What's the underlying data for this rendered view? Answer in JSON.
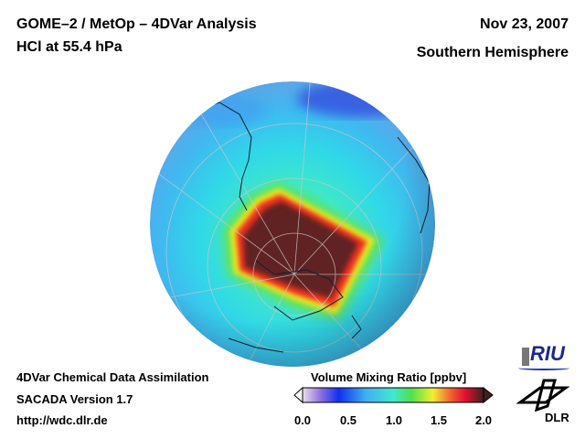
{
  "header": {
    "title": "GOME–2 / MetOp – 4DVar Analysis",
    "subtitle": "HCl at 55.4 hPa",
    "date": "Nov 23, 2007",
    "region": "Southern Hemisphere"
  },
  "footer": {
    "line1": "4DVar Chemical Data Assimilation",
    "line2": "SACADA Version 1.7",
    "url": "http://wdc.dlr.de"
  },
  "colorbar": {
    "title": "Volume Mixing Ratio [ppbv]",
    "ticks": [
      "0.0",
      "0.5",
      "1.0",
      "1.5",
      "2.0"
    ],
    "range": [
      0.0,
      2.0
    ]
  },
  "logos": {
    "riu": "RIU",
    "dlr": "DLR"
  }
}
